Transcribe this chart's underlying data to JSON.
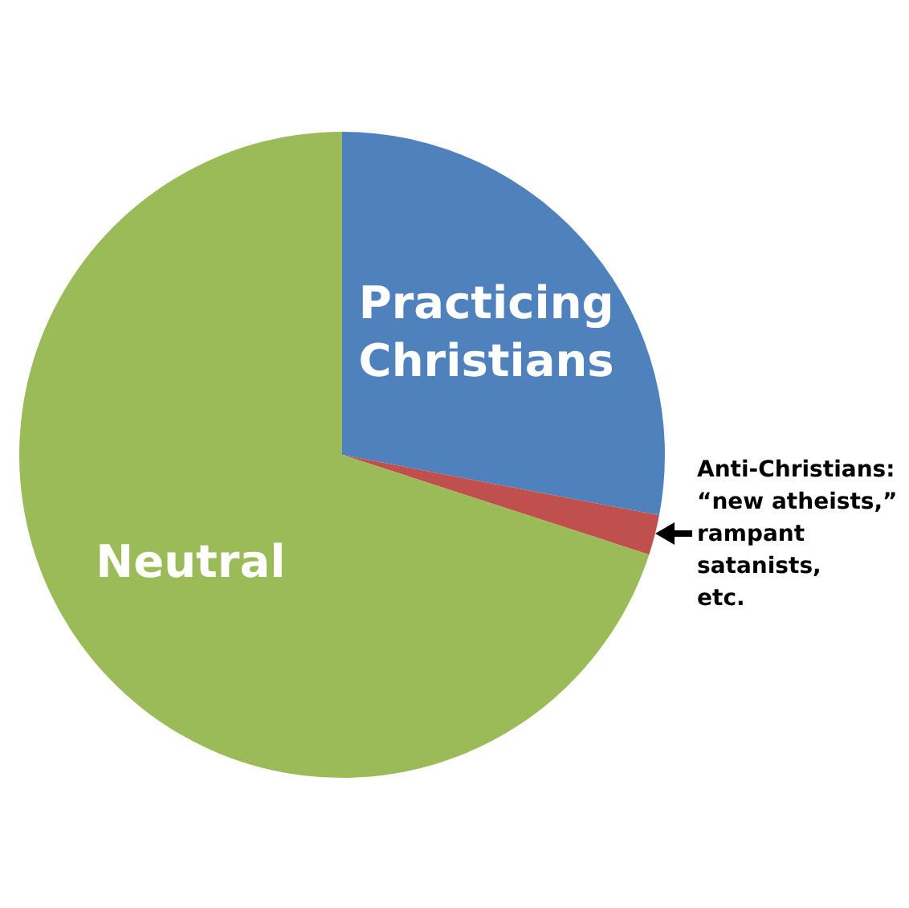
{
  "chart_data": {
    "type": "pie",
    "categories": [
      "Practicing\nChristians",
      "Anti-Christians:\n“new atheists,”\nrampant satanists,\netc.",
      "Neutral"
    ],
    "values": [
      28,
      2,
      70
    ],
    "colors": [
      "#4f81bd",
      "#c0504d",
      "#9bbb59"
    ],
    "legend": false
  }
}
